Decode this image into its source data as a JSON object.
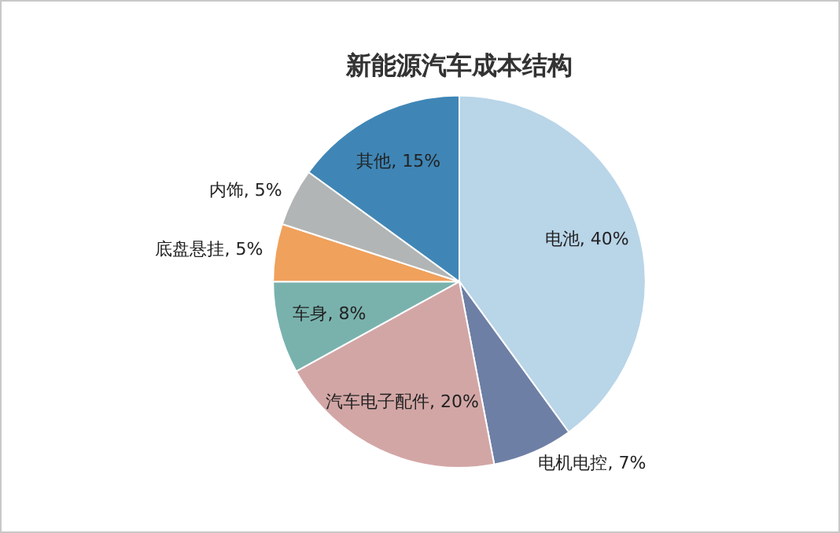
{
  "chart_data": {
    "type": "pie",
    "title": "新能源汽车成本结构",
    "categories": [
      "电池",
      "电机电控",
      "汽车电子配件",
      "车身",
      "底盘悬挂",
      "内饰",
      "其他"
    ],
    "values": [
      40,
      7,
      20,
      8,
      5,
      5,
      15
    ],
    "value_labels": [
      "40%",
      "7%",
      "20%",
      "8%",
      "5%",
      "5%",
      "15%"
    ],
    "colors": [
      "#b9d5e8",
      "#6e7fa5",
      "#d3a6a6",
      "#79b2ad",
      "#f0a15c",
      "#b1b5b5",
      "#3f86b6"
    ],
    "data_labels": true,
    "legend": false
  }
}
